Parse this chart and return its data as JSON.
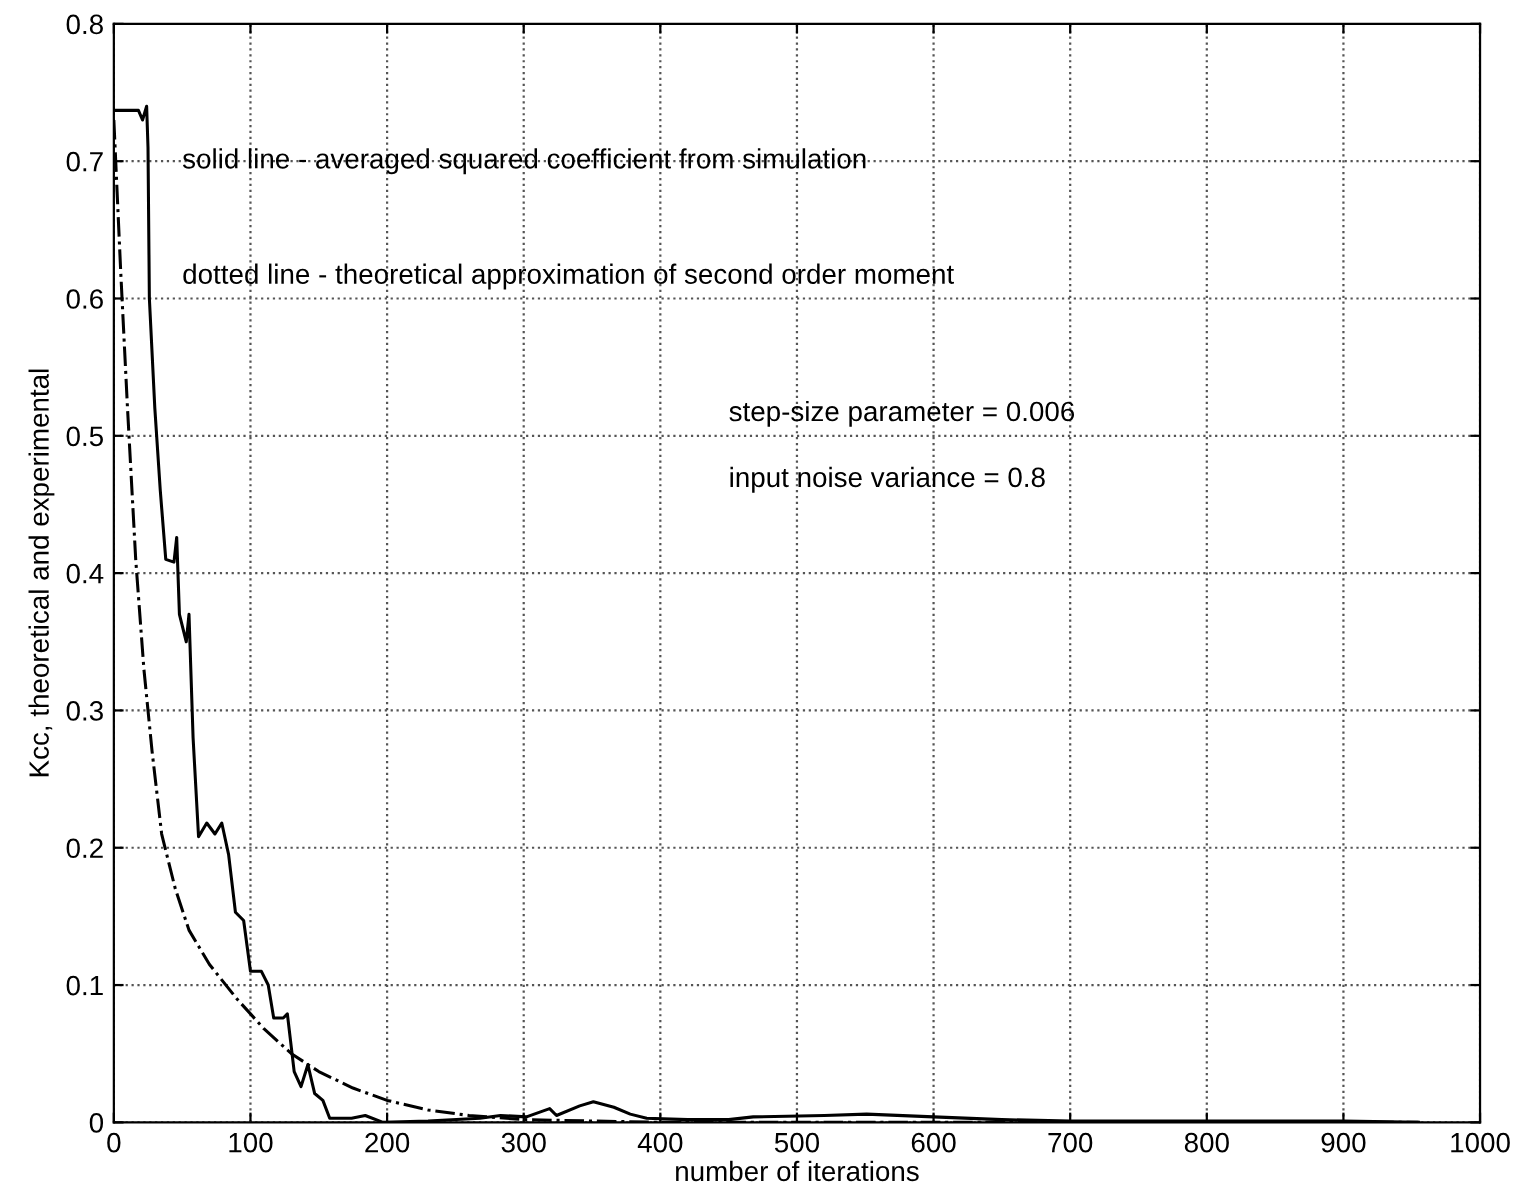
{
  "chart_data": {
    "type": "line",
    "xlabel": "number of iterations",
    "ylabel": "Kcc, theoretical and experimental",
    "xlim": [
      0,
      1000
    ],
    "ylim": [
      0,
      0.8
    ],
    "xticks": [
      0,
      100,
      200,
      300,
      400,
      500,
      600,
      700,
      800,
      900,
      1000
    ],
    "yticks": [
      0,
      0.1,
      0.2,
      0.3,
      0.4,
      0.5,
      0.6,
      0.7,
      0.8
    ],
    "grid": true,
    "annotations": [
      "solid line - averaged squared coefficient from simulation",
      "dotted line - theoretical approximation of second order moment",
      "step-size parameter = 0.006",
      "input noise variance = 0.8"
    ],
    "series": [
      {
        "color": "#000000",
        "line_style": "solid",
        "x": [
          0,
          18,
          21,
          24,
          25,
          26,
          30,
          34,
          38,
          44,
          46,
          48,
          53,
          55,
          58,
          62,
          68,
          74,
          79,
          84,
          89,
          95,
          100,
          108,
          113,
          117,
          124,
          127,
          132,
          137,
          142,
          147,
          153,
          158,
          174,
          184,
          197,
          230,
          268,
          283,
          302,
          319,
          324,
          341,
          351,
          366,
          378,
          390,
          420,
          450,
          468,
          520,
          551,
          600,
          650,
          700,
          800,
          900,
          955
        ],
        "values": [
          0.737,
          0.737,
          0.73,
          0.74,
          0.71,
          0.6,
          0.52,
          0.46,
          0.41,
          0.408,
          0.426,
          0.37,
          0.35,
          0.37,
          0.28,
          0.208,
          0.218,
          0.21,
          0.218,
          0.195,
          0.153,
          0.147,
          0.11,
          0.11,
          0.1,
          0.076,
          0.076,
          0.079,
          0.037,
          0.026,
          0.042,
          0.021,
          0.016,
          0.003,
          0.003,
          0.005,
          0.0,
          0.001,
          0.003,
          0.005,
          0.004,
          0.01,
          0.005,
          0.012,
          0.015,
          0.011,
          0.006,
          0.003,
          0.002,
          0.002,
          0.004,
          0.005,
          0.006,
          0.004,
          0.002,
          0.001,
          0.001,
          0.001,
          0.0
        ]
      },
      {
        "color": "#000000",
        "line_style": "dashdot",
        "x": [
          0,
          5,
          10,
          16,
          22,
          28,
          35,
          45,
          55,
          70,
          90,
          110,
          130,
          150,
          175,
          200,
          230,
          260,
          300,
          350,
          400,
          500,
          600,
          700,
          800,
          900,
          955
        ],
        "values": [
          0.73,
          0.62,
          0.52,
          0.41,
          0.33,
          0.27,
          0.21,
          0.17,
          0.14,
          0.115,
          0.09,
          0.068,
          0.05,
          0.037,
          0.025,
          0.016,
          0.009,
          0.005,
          0.002,
          0.001,
          0.0,
          0.0,
          0.0,
          0.0,
          0.0,
          0.0,
          0.0
        ]
      }
    ]
  }
}
